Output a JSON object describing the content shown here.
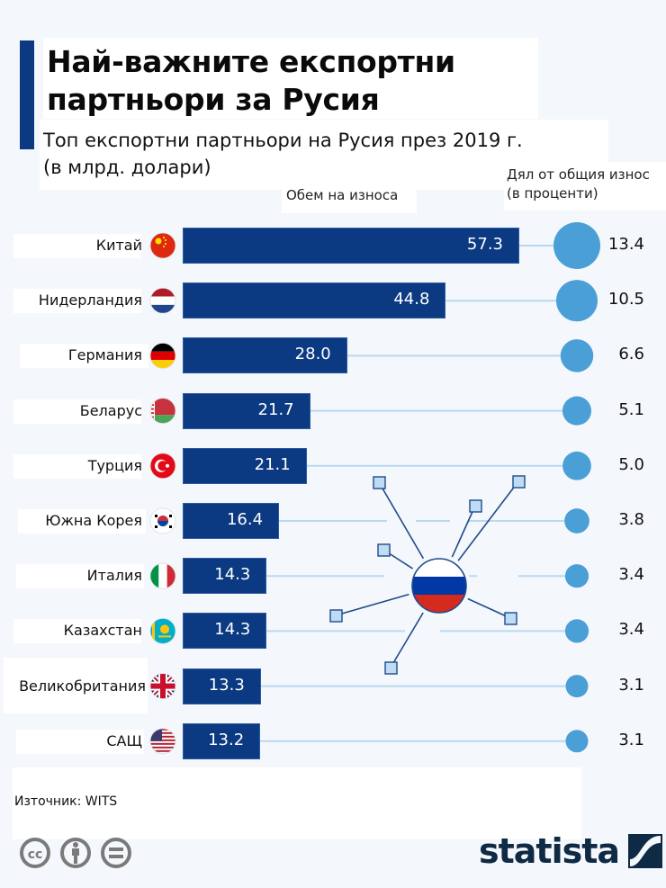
{
  "header": {
    "title_line1": "Най-важните експортни",
    "title_line2": "партньори за Русия",
    "subtitle_line1": "Топ експортни партньори на Русия през 2019 г.",
    "subtitle_line2": "(в млрд. долари)",
    "col_volume": "Обем на износа",
    "col_share_line1": "Дял от общия износ",
    "col_share_line2": "(в проценти)"
  },
  "colors": {
    "bar": "#0b3a82",
    "bubble": "#4a9fd6",
    "connector": "#b9d9f2",
    "accent": "#0b3a82"
  },
  "chart_data": {
    "type": "bar",
    "orientation": "horizontal",
    "title": "Най-важните експортни партньори за Русия",
    "subtitle": "Топ експортни партньори на Русия през 2019 г. (в млрд. долари)",
    "categories": [
      "Китай",
      "Нидерландия",
      "Германия",
      "Беларус",
      "Турция",
      "Южна Корея",
      "Италия",
      "Казахстан",
      "Великобритания",
      "САЩ"
    ],
    "series": [
      {
        "name": "Обем на износа",
        "unit": "млрд. долари",
        "values": [
          57.3,
          44.8,
          28.0,
          21.7,
          21.1,
          16.4,
          14.3,
          14.3,
          13.3,
          13.2
        ]
      },
      {
        "name": "Дял от общия износ (в проценти)",
        "unit": "%",
        "values": [
          13.4,
          10.5,
          6.6,
          5.1,
          5.0,
          3.8,
          3.4,
          3.4,
          3.1,
          3.1
        ]
      }
    ],
    "value_labels": [
      "57.3",
      "44.8",
      "28.0",
      "21.7",
      "21.1",
      "16.4",
      "14.3",
      "14.3",
      "13.3",
      "13.2"
    ],
    "share_labels": [
      "13.4",
      "10.5",
      "6.6",
      "5.1",
      "5.0",
      "3.8",
      "3.4",
      "3.4",
      "3.1",
      "3.1"
    ],
    "flags": [
      "china-flag-icon",
      "netherlands-flag-icon",
      "germany-flag-icon",
      "belarus-flag-icon",
      "turkey-flag-icon",
      "south-korea-flag-icon",
      "italy-flag-icon",
      "kazakhstan-flag-icon",
      "uk-flag-icon",
      "usa-flag-icon"
    ],
    "xlim": [
      0,
      57.3
    ],
    "grid": false,
    "legend": "none"
  },
  "footer": {
    "source": "Източник: WITS",
    "license_icons": [
      "cc-icon",
      "by-attribution-icon",
      "nd-noderivs-icon"
    ],
    "brand": "statista"
  }
}
